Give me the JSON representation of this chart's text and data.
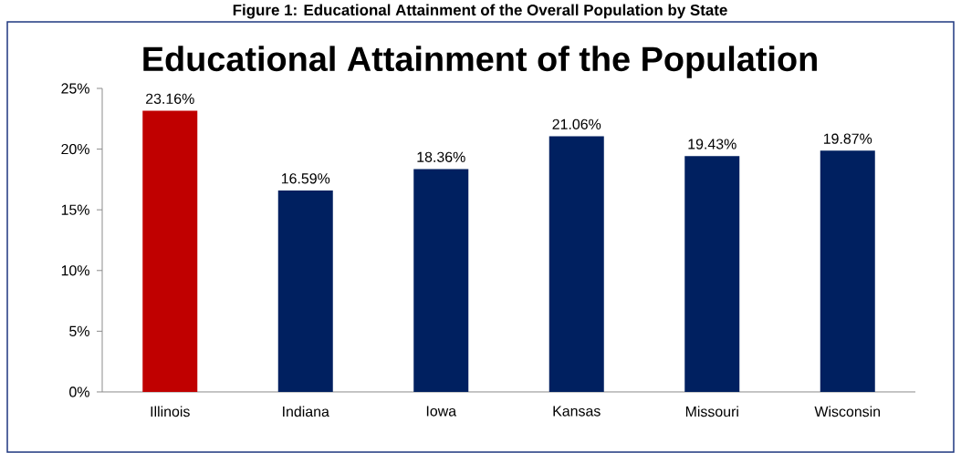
{
  "chart_data": {
    "type": "bar",
    "title": "Educational Attainment of the Population",
    "annotations": [
      "Figure 1: Educational Attainment of the Overall Population by State"
    ],
    "categories": [
      "Illinois",
      "Indiana",
      "Iowa",
      "Kansas",
      "Missouri",
      "Wisconsin"
    ],
    "values": [
      23.16,
      16.59,
      18.36,
      21.06,
      19.43,
      19.87
    ],
    "value_labels": [
      "23.16%",
      "16.59%",
      "18.36%",
      "21.06%",
      "19.43%",
      "19.87%"
    ],
    "colors": [
      "#c00000",
      "#002060",
      "#002060",
      "#002060",
      "#002060",
      "#002060"
    ],
    "ylim": [
      0,
      25
    ],
    "yticks": [
      {
        "value": 0,
        "label": "0%"
      },
      {
        "value": 5,
        "label": "5%"
      },
      {
        "value": 10,
        "label": "10%"
      },
      {
        "value": 15,
        "label": "15%"
      },
      {
        "value": 20,
        "label": "20%"
      },
      {
        "value": 25,
        "label": "25%"
      }
    ],
    "grid": false
  }
}
